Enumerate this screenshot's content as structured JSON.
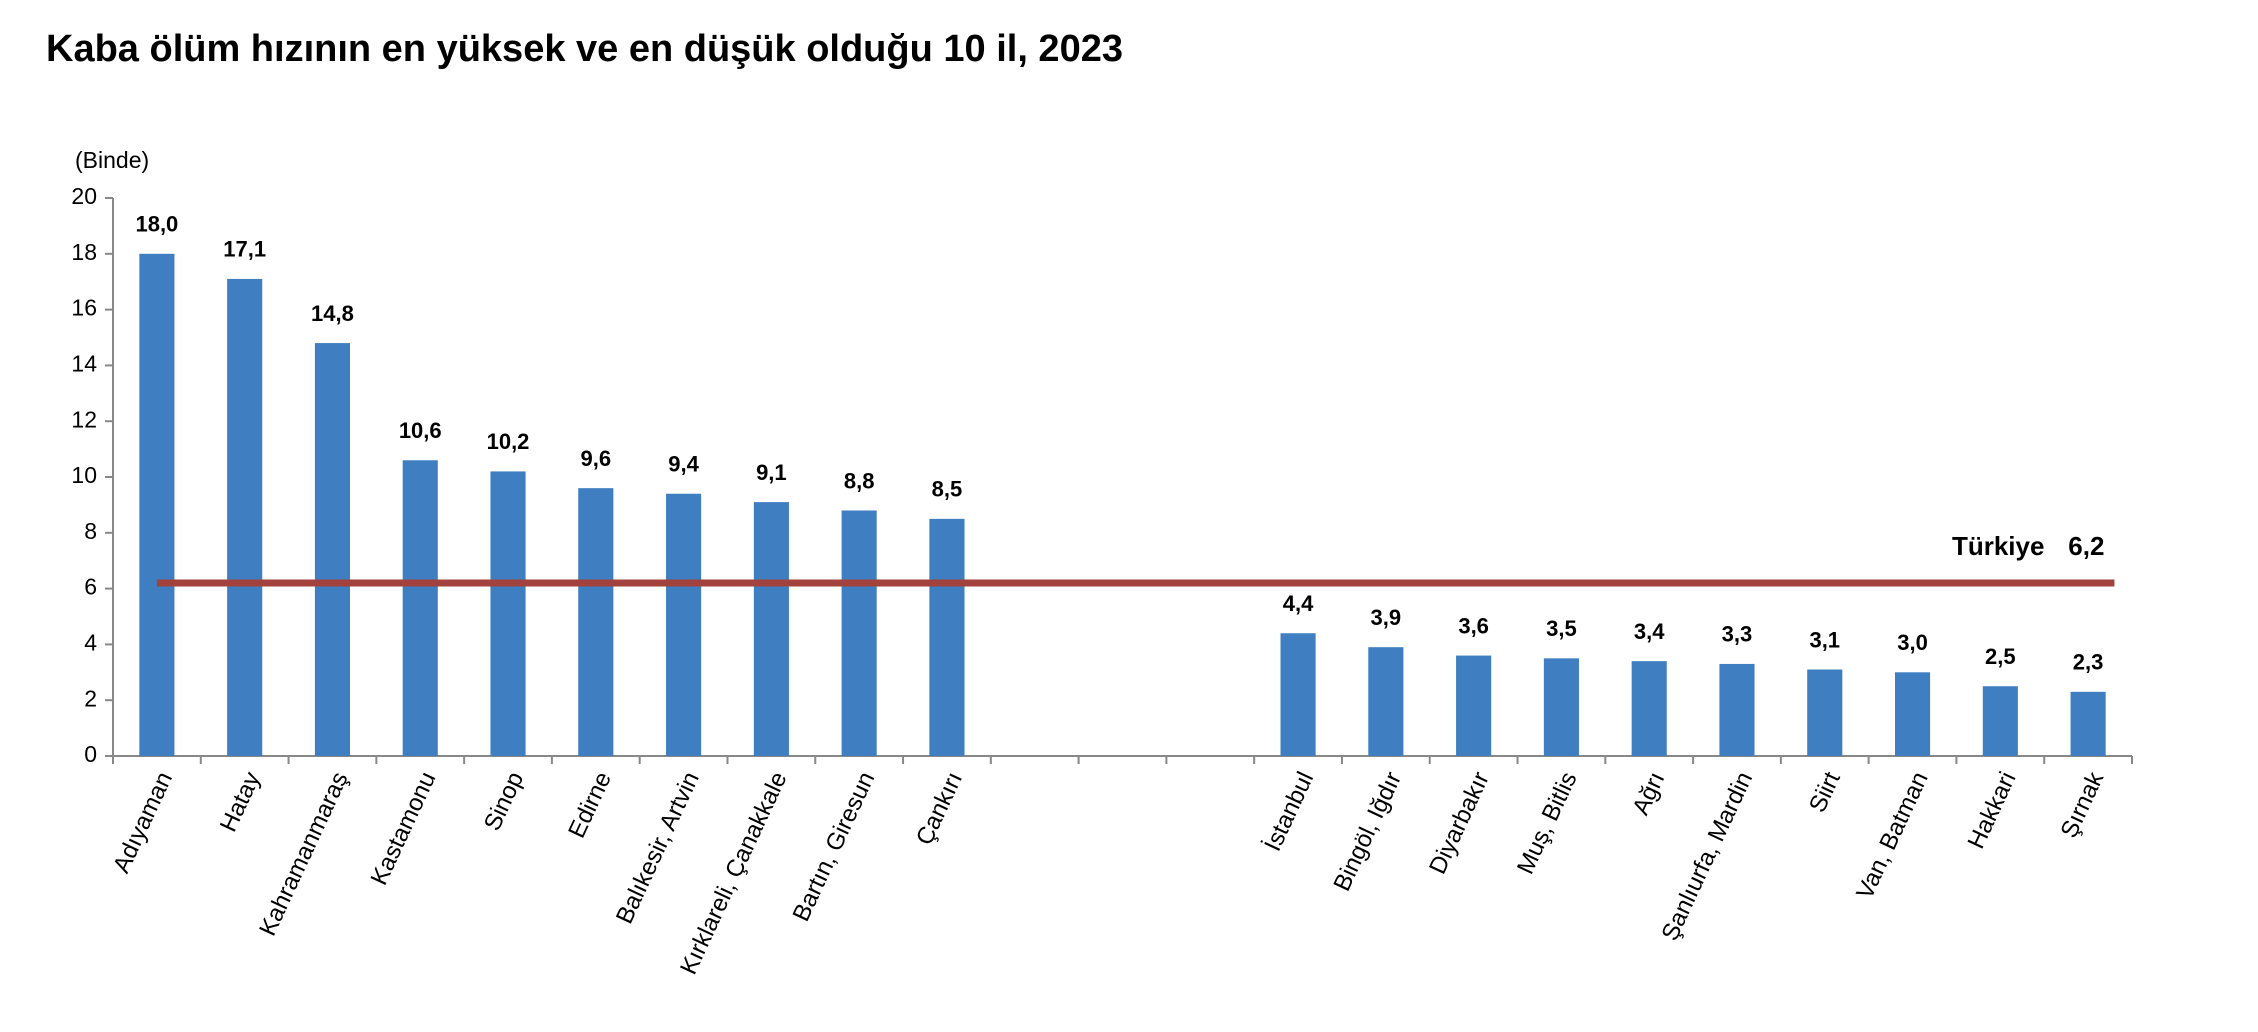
{
  "chart_data": {
    "type": "bar",
    "title": "Kaba ölüm hızının en yüksek ve en düşük olduğu 10 il, 2023",
    "y_label": "(Binde)",
    "categories": [
      "Adıyaman",
      "Hatay",
      "Kahramanmaraş",
      "Kastamonu",
      "Sinop",
      "Edirne",
      "Balıkesir, Artvin",
      "Kırklareli, Çanakkale",
      "Bartın, Giresun",
      "Çankırı",
      null,
      null,
      null,
      "İstanbul",
      "Bingöl, Iğdır",
      "Diyarbakır",
      "Muş, Bitlis",
      "Ağrı",
      "Şanlıurfa, Mardin",
      "Siirt",
      "Van, Batman",
      "Hakkari",
      "Şırnak"
    ],
    "values": [
      18.0,
      17.1,
      14.8,
      10.6,
      10.2,
      9.6,
      9.4,
      9.1,
      8.8,
      8.5,
      null,
      null,
      null,
      4.4,
      3.9,
      3.6,
      3.5,
      3.4,
      3.3,
      3.1,
      3.0,
      2.5,
      2.3
    ],
    "value_labels": [
      "18,0",
      "17,1",
      "14,8",
      "10,6",
      "10,2",
      "9,6",
      "9,4",
      "9,1",
      "8,8",
      "8,5",
      null,
      null,
      null,
      "4,4",
      "3,9",
      "3,6",
      "3,5",
      "3,4",
      "3,3",
      "3,1",
      "3,0",
      "2,5",
      "2,3"
    ],
    "color": "#3f7fc1",
    "ylim": [
      0,
      20
    ],
    "yticks": [
      0,
      2,
      4,
      6,
      8,
      10,
      12,
      14,
      16,
      18,
      20
    ],
    "reference_line": {
      "label": "Türkiye",
      "value": 6.2,
      "value_label": "6,2",
      "color": "#a3423d"
    }
  }
}
